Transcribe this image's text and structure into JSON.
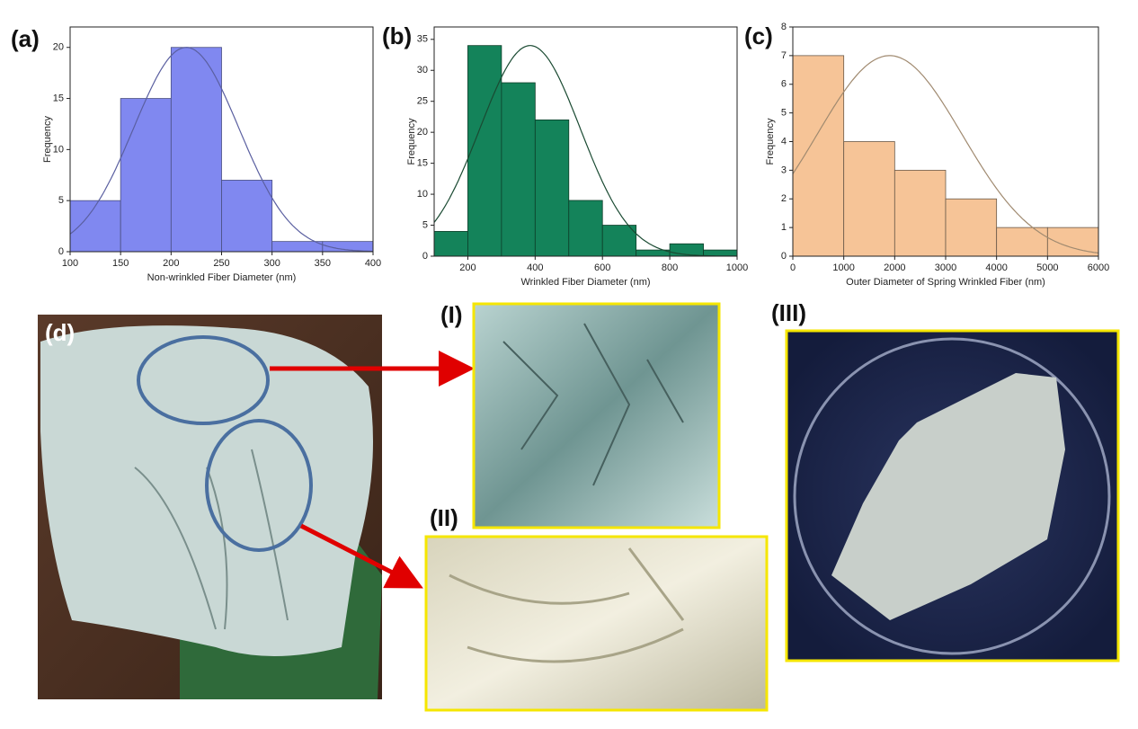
{
  "chart_data": [
    {
      "type": "histogram",
      "panel_label": "(a)",
      "x_label": "Non-wrinkled Fiber Diameter (nm)",
      "y_label": "Frequency",
      "bins": [
        100,
        150,
        200,
        250,
        300,
        350,
        400
      ],
      "values": [
        5,
        15,
        20,
        7,
        1,
        1
      ],
      "color": "#8088f0",
      "edge_color": "#4a4f80",
      "fit": {
        "mean": 215,
        "sd": 52,
        "peak": 20,
        "color": "#5a5fa0"
      },
      "xlim": [
        100,
        400
      ],
      "xticks": [
        100,
        150,
        200,
        250,
        300,
        350,
        400
      ],
      "ylim": [
        0,
        22
      ],
      "yticks": [
        0,
        5,
        10,
        15,
        20
      ]
    },
    {
      "type": "histogram",
      "panel_label": "(b)",
      "x_label": "Wrinkled Fiber Diameter (nm)",
      "y_label": "Frequency",
      "bins": [
        100,
        200,
        300,
        400,
        500,
        600,
        700,
        800,
        900,
        1000
      ],
      "values": [
        4,
        34,
        28,
        22,
        9,
        5,
        1,
        2,
        1
      ],
      "color": "#14835a",
      "edge_color": "#0d3d28",
      "fit": {
        "mean": 385,
        "sd": 149,
        "peak": 34,
        "color": "#1a4a32"
      },
      "xlim": [
        100,
        1000
      ],
      "xticks": [
        200,
        400,
        600,
        800,
        1000
      ],
      "ylim": [
        0,
        37
      ],
      "yticks": [
        0,
        5,
        10,
        15,
        20,
        25,
        30,
        35
      ]
    },
    {
      "type": "histogram",
      "panel_label": "(c)",
      "x_label": "Outer Diameter of Spring Wrinkled Fiber (nm)",
      "y_label": "Frequency",
      "bins": [
        0,
        1000,
        2000,
        3000,
        4000,
        5000,
        6000
      ],
      "values": [
        7,
        4,
        3,
        2,
        1,
        1
      ],
      "color": "#f6c497",
      "edge_color": "#6a5a4a",
      "fit": {
        "mean": 1900,
        "sd": 1424,
        "peak": 7,
        "color": "#a08a70"
      },
      "xlim": [
        0,
        6000
      ],
      "xticks": [
        0,
        1000,
        2000,
        3000,
        4000,
        5000,
        6000
      ],
      "ylim": [
        0,
        8
      ],
      "yticks": [
        0,
        1,
        2,
        3,
        4,
        5,
        6,
        7,
        8
      ]
    }
  ],
  "photos": {
    "d": "(d)",
    "i": "(I)",
    "ii": "(II)",
    "iii": "(III)"
  }
}
